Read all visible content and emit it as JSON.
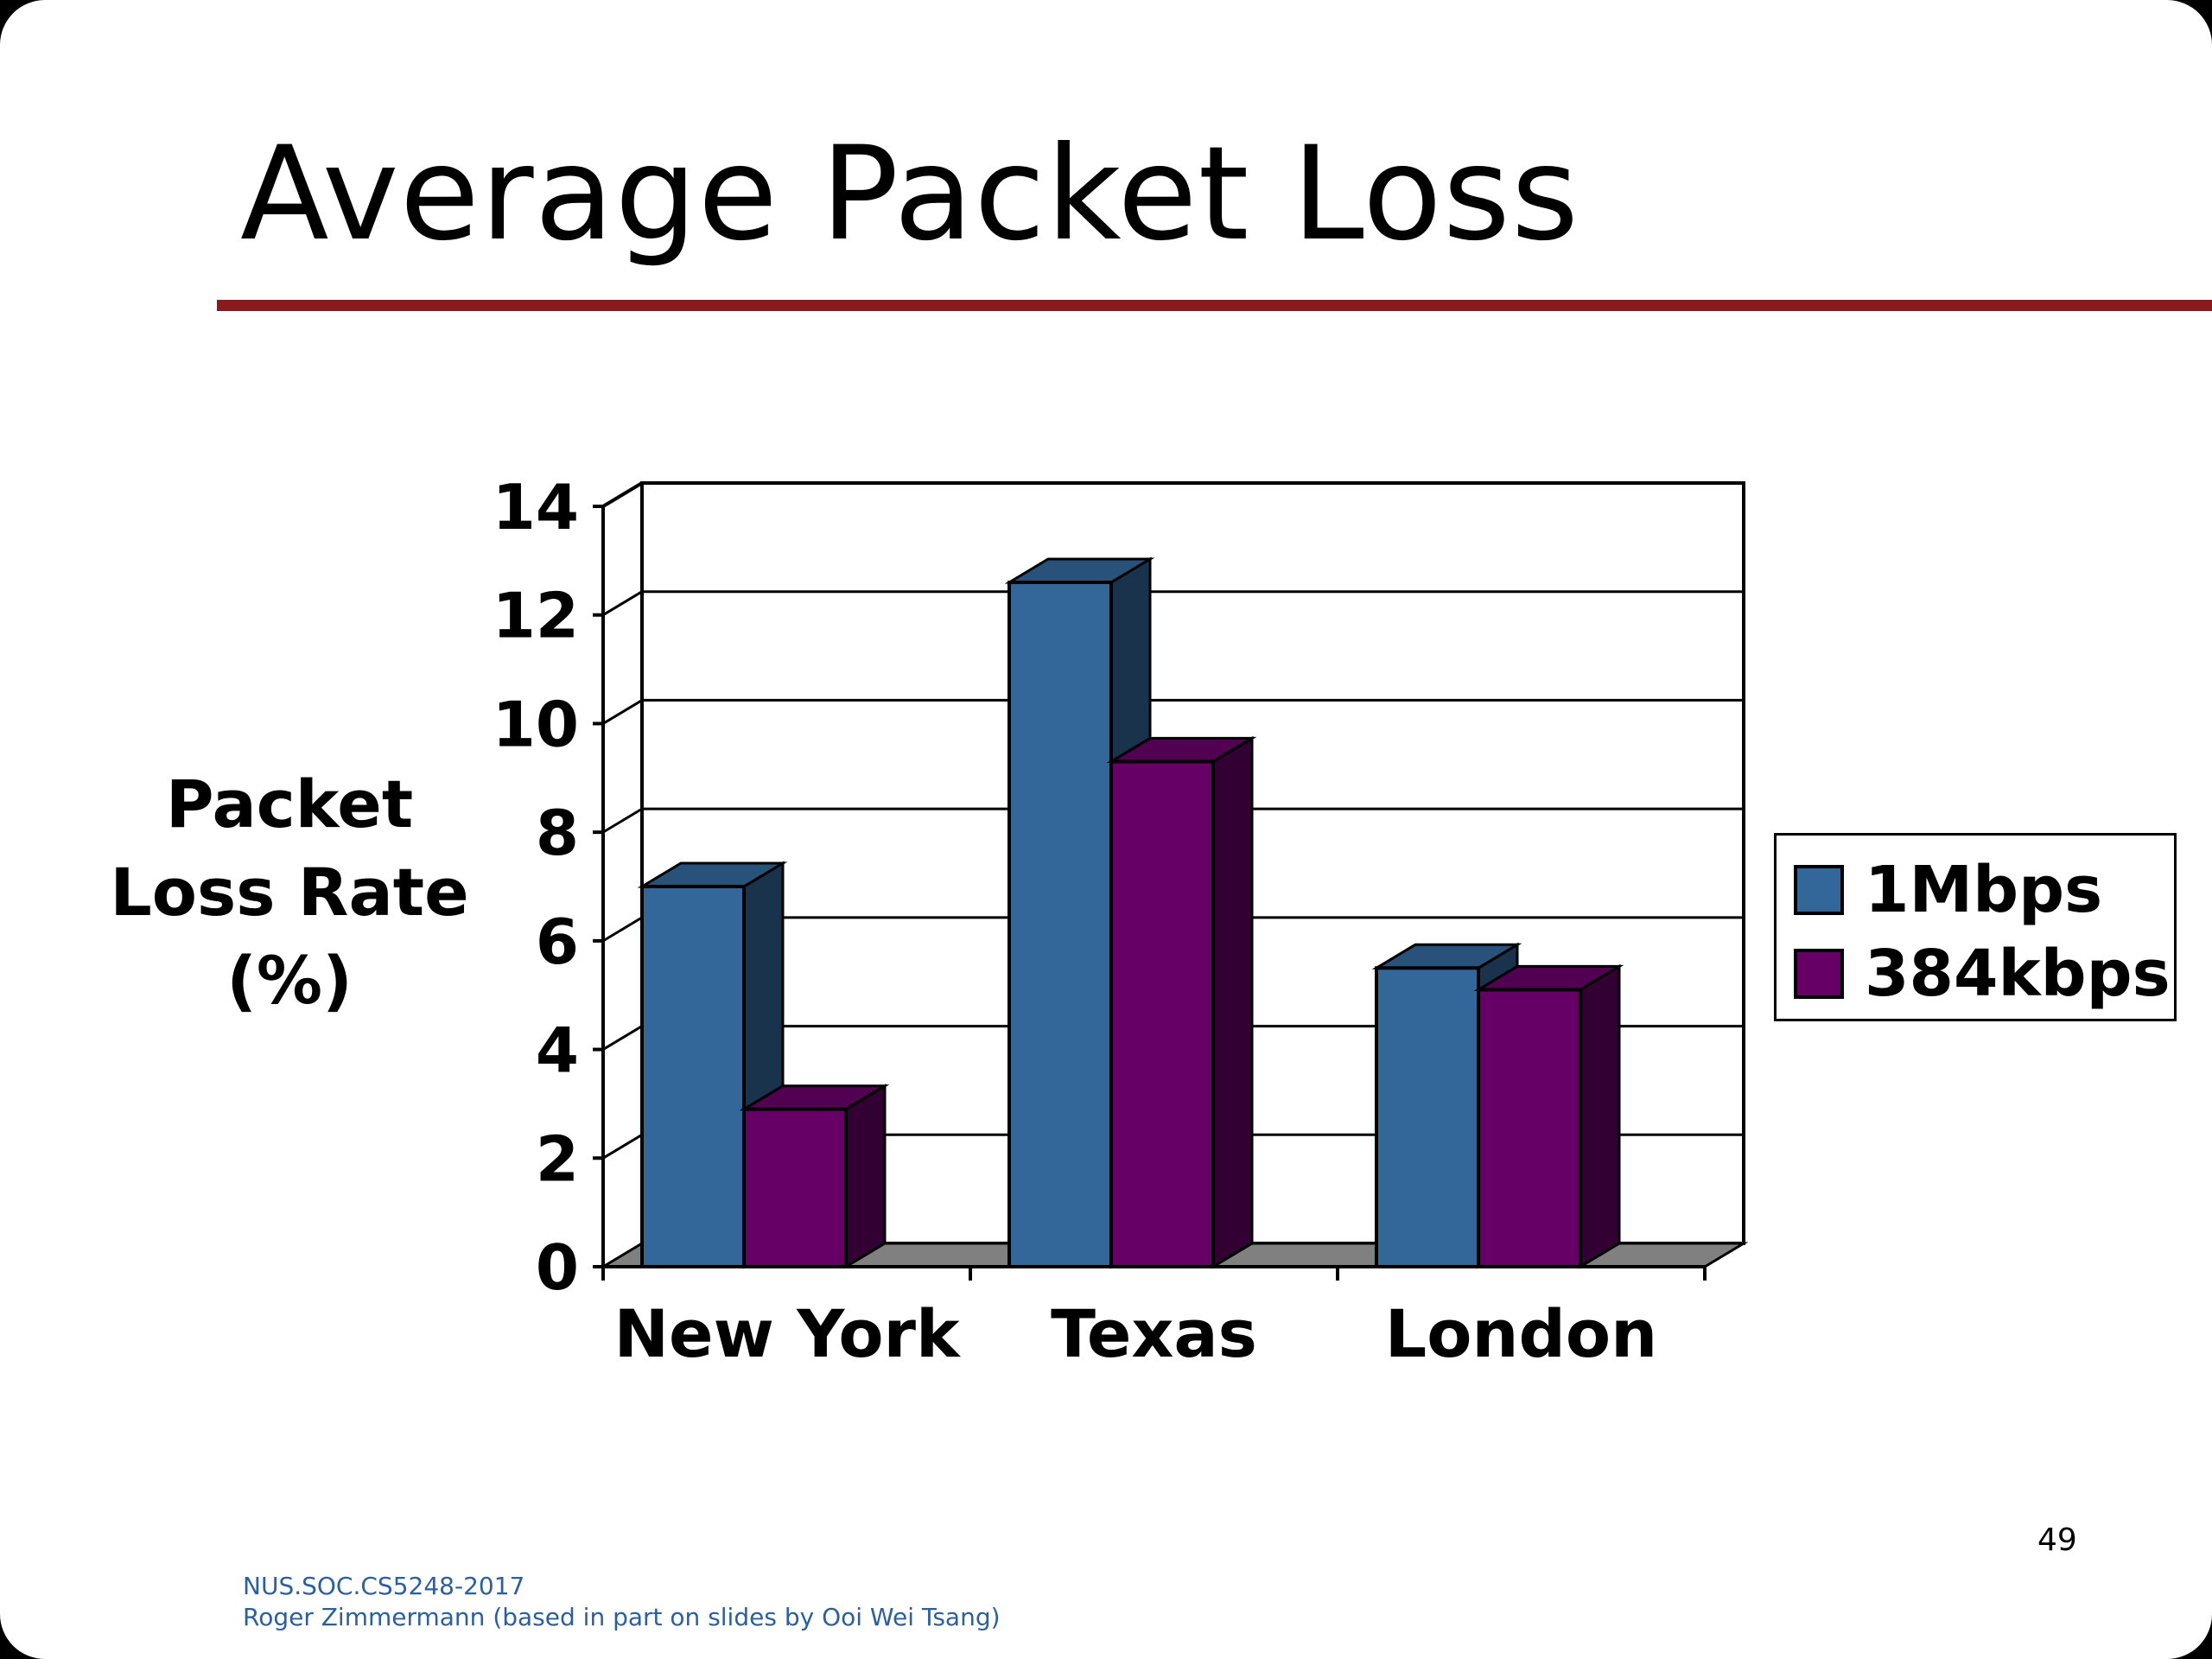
{
  "slide": {
    "title": "Average Packet Loss",
    "page_number": "49",
    "footer_line1": "NUS.SOC.CS5248-2017",
    "footer_line2": "Roger Zimmermann (based in part on slides by Ooi Wei Tsang)"
  },
  "colors": {
    "title_rule": "#8b1a1d",
    "series_1Mbps": "#336699",
    "series_384kbps": "#660066",
    "floor": "#808080",
    "footer_text": "#2c5f9e"
  },
  "chart_data": {
    "type": "bar",
    "style": "3d-clustered-column",
    "title": "",
    "ylabel_lines": [
      "Packet",
      "Loss Rate",
      "(%)"
    ],
    "xlabel": "",
    "categories": [
      "New York",
      "Texas",
      "London"
    ],
    "series": [
      {
        "name": "1Mbps",
        "values": [
          7.0,
          12.6,
          5.5
        ]
      },
      {
        "name": "384kbps",
        "values": [
          2.9,
          9.3,
          5.1
        ]
      }
    ],
    "ylim": [
      0,
      14
    ],
    "yticks": [
      0,
      2,
      4,
      6,
      8,
      10,
      12,
      14
    ],
    "grid": true,
    "legend_position": "right"
  }
}
